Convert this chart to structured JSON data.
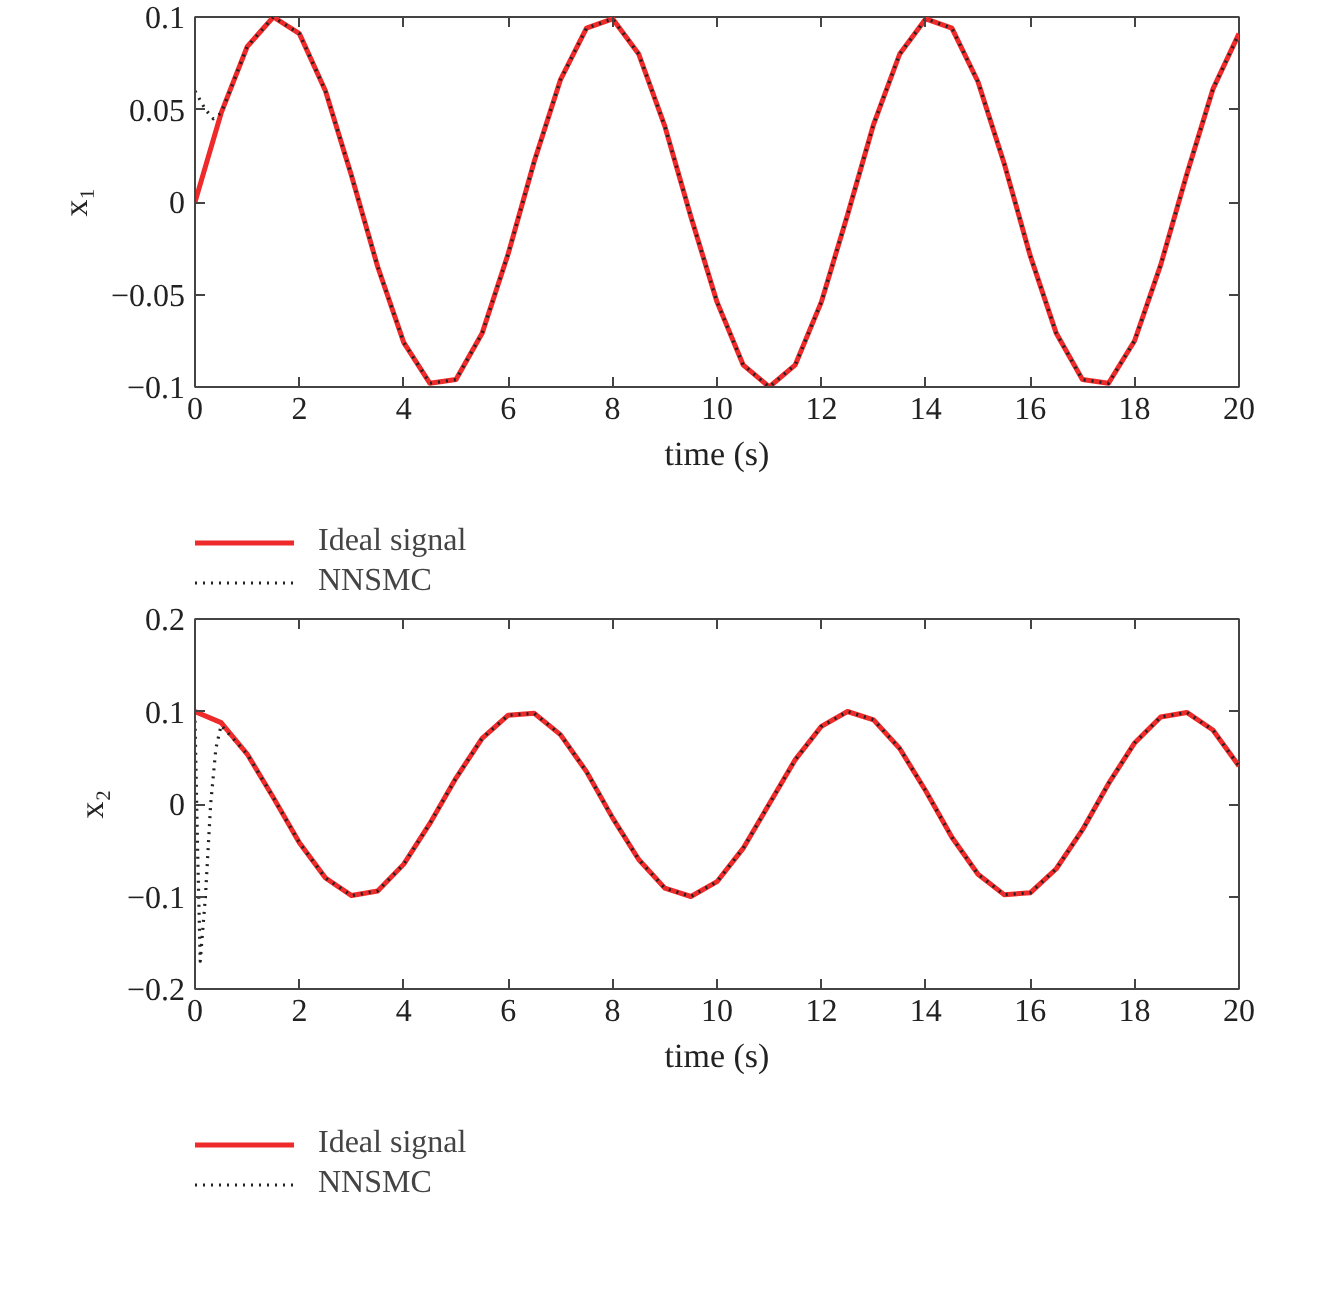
{
  "chart_data": [
    {
      "type": "line",
      "xlabel": "time (s)",
      "ylabel": "x₁",
      "xlim": [
        0,
        20
      ],
      "ylim": [
        -0.1,
        0.1
      ],
      "xticks": [
        0,
        2,
        4,
        6,
        8,
        10,
        12,
        14,
        16,
        18,
        20
      ],
      "yticks": [
        -0.1,
        -0.05,
        0,
        0.05,
        0.1
      ],
      "grid": false,
      "legend": "bottom",
      "x": [
        0,
        0.5,
        1,
        1.5,
        2,
        2.5,
        3,
        3.5,
        4,
        4.5,
        5,
        5.5,
        6,
        6.5,
        7,
        7.5,
        8,
        8.5,
        9,
        9.5,
        10,
        10.5,
        11,
        11.5,
        12,
        12.5,
        13,
        13.5,
        14,
        14.5,
        15,
        15.5,
        16,
        16.5,
        17,
        17.5,
        18,
        18.5,
        19,
        19.5,
        20
      ],
      "series": [
        {
          "name": "Ideal signal",
          "color": "#ee2a2a",
          "line_style": "solid",
          "values": [
            0,
            0.048,
            0.084,
            0.1,
            0.091,
            0.06,
            0.014,
            -0.035,
            -0.076,
            -0.098,
            -0.096,
            -0.071,
            -0.028,
            0.022,
            0.066,
            0.094,
            0.099,
            0.08,
            0.041,
            -0.008,
            -0.054,
            -0.088,
            -0.1,
            -0.088,
            -0.054,
            -0.007,
            0.042,
            0.08,
            0.099,
            0.094,
            0.065,
            0.021,
            -0.029,
            -0.071,
            -0.096,
            -0.098,
            -0.075,
            -0.034,
            0.015,
            0.061,
            0.091
          ]
        },
        {
          "name": "NNSMC",
          "color": "#222222",
          "line_style": "dotted",
          "x": [
            0,
            0.1,
            0.2,
            0.35,
            0.5,
            1,
            1.5,
            2,
            2.5,
            3,
            3.5,
            4,
            4.5,
            5,
            5.5,
            6,
            6.5,
            7,
            7.5,
            8,
            8.5,
            9,
            9.5,
            10,
            10.5,
            11,
            11.5,
            12,
            12.5,
            13,
            13.5,
            14,
            14.5,
            15,
            15.5,
            16,
            16.5,
            17,
            17.5,
            18,
            18.5,
            19,
            19.5,
            20
          ],
          "values": [
            0.06,
            0.055,
            0.05,
            0.045,
            0.048,
            0.084,
            0.1,
            0.091,
            0.06,
            0.014,
            -0.035,
            -0.076,
            -0.098,
            -0.096,
            -0.071,
            -0.028,
            0.022,
            0.066,
            0.094,
            0.099,
            0.08,
            0.041,
            -0.008,
            -0.054,
            -0.088,
            -0.1,
            -0.088,
            -0.054,
            -0.007,
            0.042,
            0.08,
            0.099,
            0.094,
            0.065,
            0.021,
            -0.029,
            -0.071,
            -0.096,
            -0.098,
            -0.075,
            -0.034,
            0.015,
            0.061,
            0.091
          ]
        }
      ]
    },
    {
      "type": "line",
      "xlabel": "time (s)",
      "ylabel": "x₂",
      "xlim": [
        0,
        20
      ],
      "ylim": [
        -0.2,
        0.2
      ],
      "xticks": [
        0,
        2,
        4,
        6,
        8,
        10,
        12,
        14,
        16,
        18,
        20
      ],
      "yticks": [
        -0.2,
        -0.1,
        0,
        0.1,
        0.2
      ],
      "grid": false,
      "legend": "bottom",
      "x": [
        0,
        0.5,
        1,
        1.5,
        2,
        2.5,
        3,
        3.5,
        4,
        4.5,
        5,
        5.5,
        6,
        6.5,
        7,
        7.5,
        8,
        8.5,
        9,
        9.5,
        10,
        10.5,
        11,
        11.5,
        12,
        12.5,
        13,
        13.5,
        14,
        14.5,
        15,
        15.5,
        16,
        16.5,
        17,
        17.5,
        18,
        18.5,
        19,
        19.5,
        20
      ],
      "series": [
        {
          "name": "Ideal signal",
          "color": "#ee2a2a",
          "line_style": "solid",
          "values": [
            0.1,
            0.088,
            0.054,
            0.007,
            -0.042,
            -0.08,
            -0.099,
            -0.094,
            -0.065,
            -0.021,
            0.028,
            0.071,
            0.096,
            0.098,
            0.075,
            0.035,
            -0.015,
            -0.06,
            -0.091,
            -0.1,
            -0.084,
            -0.048,
            0,
            0.048,
            0.084,
            0.1,
            0.091,
            0.06,
            0.014,
            -0.036,
            -0.076,
            -0.098,
            -0.096,
            -0.07,
            -0.028,
            0.022,
            0.066,
            0.094,
            0.099,
            0.08,
            0.041
          ]
        },
        {
          "name": "NNSMC",
          "color": "#222222",
          "line_style": "dotted",
          "x": [
            0,
            0.05,
            0.1,
            0.2,
            0.3,
            0.4,
            0.5,
            1,
            1.5,
            2,
            2.5,
            3,
            3.5,
            4,
            4.5,
            5,
            5.5,
            6,
            6.5,
            7,
            7.5,
            8,
            8.5,
            9,
            9.5,
            10,
            10.5,
            11,
            11.5,
            12,
            12.5,
            13,
            13.5,
            14,
            14.5,
            15,
            15.5,
            16,
            16.5,
            17,
            17.5,
            18,
            18.5,
            19,
            19.5,
            20
          ],
          "values": [
            0.09,
            -0.05,
            -0.17,
            -0.1,
            0,
            0.06,
            0.085,
            0.054,
            0.007,
            -0.042,
            -0.08,
            -0.099,
            -0.094,
            -0.065,
            -0.021,
            0.028,
            0.071,
            0.096,
            0.098,
            0.075,
            0.035,
            -0.015,
            -0.06,
            -0.091,
            -0.1,
            -0.084,
            -0.048,
            0,
            0.048,
            0.084,
            0.1,
            0.091,
            0.06,
            0.014,
            -0.036,
            -0.076,
            -0.098,
            -0.096,
            -0.07,
            -0.028,
            0.022,
            0.066,
            0.094,
            0.099,
            0.08,
            0.041
          ]
        }
      ]
    }
  ]
}
